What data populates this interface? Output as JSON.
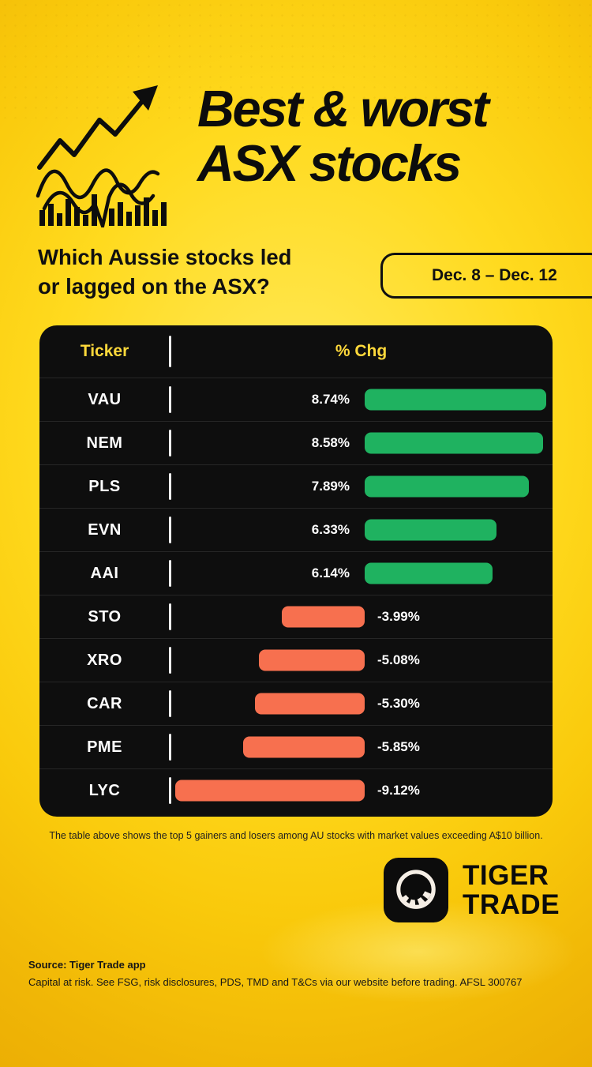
{
  "header": {
    "title_line1": "Best & worst",
    "title_line2": "ASX stocks",
    "subtitle_line1": "Which Aussie stocks led",
    "subtitle_line2": "or lagged on the ASX?",
    "date_badge": "Dec. 8 – Dec. 12"
  },
  "table": {
    "col_ticker": "Ticker",
    "col_chg": "% Chg",
    "rows": [
      {
        "ticker": "VAU",
        "chg": "8.74%",
        "value": 8.74
      },
      {
        "ticker": "NEM",
        "chg": "8.58%",
        "value": 8.58
      },
      {
        "ticker": "PLS",
        "chg": "7.89%",
        "value": 7.89
      },
      {
        "ticker": "EVN",
        "chg": "6.33%",
        "value": 6.33
      },
      {
        "ticker": "AAI",
        "chg": "6.14%",
        "value": 6.14
      },
      {
        "ticker": "STO",
        "chg": "-3.99%",
        "value": -3.99
      },
      {
        "ticker": "XRO",
        "chg": "-5.08%",
        "value": -5.08
      },
      {
        "ticker": "CAR",
        "chg": "-5.30%",
        "value": -5.3
      },
      {
        "ticker": "PME",
        "chg": "-5.85%",
        "value": -5.85
      },
      {
        "ticker": "LYC",
        "chg": "-9.12%",
        "value": -9.12
      }
    ]
  },
  "caption": "The table above shows the top 5 gainers and losers among AU stocks with market values exceeding A$10 billion.",
  "logo": {
    "line1": "TIGER",
    "line2": "TRADE"
  },
  "footer": {
    "source": "Source: Tiger Trade app",
    "disclaimer": "Capital at risk. See FSG, risk disclosures, PDS, TMD and T&Cs via our website before trading. AFSL 300767"
  },
  "colors": {
    "gain": "#1fb260",
    "loss": "#f7704f",
    "table_bg": "#0e0e0e",
    "header_yellow": "#ffd93b",
    "background_yellow": "#ffd411"
  },
  "chart_data": {
    "type": "bar",
    "orientation": "horizontal",
    "title": "Best & worst ASX stocks",
    "subtitle": "Which Aussie stocks led or lagged on the ASX?",
    "period": "Dec. 8 – Dec. 12",
    "categories": [
      "VAU",
      "NEM",
      "PLS",
      "EVN",
      "AAI",
      "STO",
      "XRO",
      "CAR",
      "PME",
      "LYC"
    ],
    "values": [
      8.74,
      8.58,
      7.89,
      6.33,
      6.14,
      -3.99,
      -5.08,
      -5.3,
      -5.85,
      -9.12
    ],
    "xlabel": "% Chg",
    "ylabel": "Ticker",
    "xlim": [
      -9.12,
      8.74
    ],
    "grid": false,
    "legend": false,
    "positive_color": "#1fb260",
    "negative_color": "#f7704f"
  }
}
